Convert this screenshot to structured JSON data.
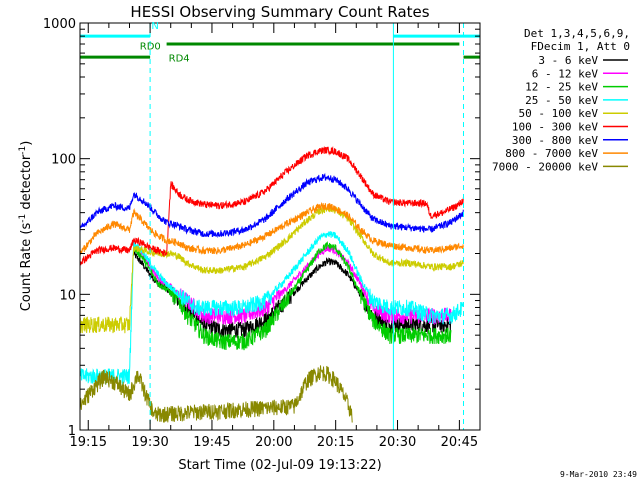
{
  "chart_data": {
    "type": "line",
    "title": "HESSI Observing Summary Count Rates",
    "xlabel": "Start Time (02-Jul-09 19:13:22)",
    "ylabel_main": "Count Rate (s",
    "ylabel_sup1": "-1",
    "ylabel_mid": " detector",
    "ylabel_sup2": "-1",
    "ylabel_end": ")",
    "yscale": "log",
    "ylim": [
      1,
      1000
    ],
    "xlim_minutes": [
      0,
      97
    ],
    "x_ticks": [
      {
        "label": "19:15",
        "min": 2
      },
      {
        "label": "19:30",
        "min": 17
      },
      {
        "label": "19:45",
        "min": 32
      },
      {
        "label": "20:00",
        "min": 47
      },
      {
        "label": "20:15",
        "min": 62
      },
      {
        "label": "20:30",
        "min": 77
      },
      {
        "label": "20:45",
        "min": 92
      }
    ],
    "y_ticks": [
      {
        "label": "1",
        "value": 1
      },
      {
        "label": "10",
        "value": 10
      },
      {
        "label": "100",
        "value": 100
      },
      {
        "label": "1000",
        "value": 1000
      }
    ],
    "legend": {
      "header1": "Det 1,3,4,5,6,9,",
      "header2": "FDecim 1, Att 0",
      "placement": "right"
    },
    "series": [
      {
        "name": "3 - 6 keV",
        "color": "#000000",
        "points": [
          [
            13,
            20
          ],
          [
            15,
            17
          ],
          [
            17,
            14
          ],
          [
            19,
            12
          ],
          [
            21,
            11
          ],
          [
            24,
            9
          ],
          [
            26,
            8
          ],
          [
            28,
            7
          ],
          [
            30,
            6
          ],
          [
            34,
            5.5
          ],
          [
            40,
            5.5
          ],
          [
            45,
            6.5
          ],
          [
            50,
            9
          ],
          [
            55,
            13
          ],
          [
            58,
            16
          ],
          [
            60,
            17.5
          ],
          [
            62,
            17
          ],
          [
            65,
            14
          ],
          [
            68,
            10
          ],
          [
            71,
            7
          ],
          [
            75,
            6
          ],
          [
            80,
            6
          ],
          [
            85,
            6
          ],
          [
            90,
            6
          ]
        ]
      },
      {
        "name": "6 - 12 keV",
        "color": "#ff00ff",
        "points": [
          [
            13,
            23
          ],
          [
            15,
            20
          ],
          [
            17,
            16
          ],
          [
            19,
            13
          ],
          [
            21,
            12
          ],
          [
            24,
            10
          ],
          [
            26,
            9
          ],
          [
            28,
            8
          ],
          [
            30,
            7
          ],
          [
            34,
            7
          ],
          [
            40,
            7
          ],
          [
            45,
            8
          ],
          [
            50,
            11
          ],
          [
            55,
            16
          ],
          [
            58,
            20
          ],
          [
            60,
            22
          ],
          [
            62,
            21
          ],
          [
            65,
            17
          ],
          [
            68,
            12
          ],
          [
            71,
            8
          ],
          [
            75,
            7
          ],
          [
            80,
            7
          ],
          [
            85,
            7
          ],
          [
            90,
            7
          ]
        ]
      },
      {
        "name": "12 - 25 keV",
        "color": "#00cc00",
        "points": [
          [
            13,
            22
          ],
          [
            15,
            19
          ],
          [
            17,
            15
          ],
          [
            19,
            12
          ],
          [
            21,
            11
          ],
          [
            24,
            9
          ],
          [
            26,
            7
          ],
          [
            28,
            6
          ],
          [
            30,
            5
          ],
          [
            34,
            4.5
          ],
          [
            40,
            4.5
          ],
          [
            45,
            5.5
          ],
          [
            50,
            9
          ],
          [
            55,
            15
          ],
          [
            58,
            21
          ],
          [
            60,
            23
          ],
          [
            62,
            22
          ],
          [
            65,
            16
          ],
          [
            68,
            10
          ],
          [
            71,
            6.5
          ],
          [
            75,
            5
          ],
          [
            80,
            5
          ],
          [
            85,
            5
          ],
          [
            90,
            5
          ]
        ]
      },
      {
        "name": "25 - 50 keV",
        "color": "#00ffff",
        "points": [
          [
            0,
            2.5
          ],
          [
            12,
            2.5
          ],
          [
            13,
            24
          ],
          [
            15,
            21
          ],
          [
            17,
            17
          ],
          [
            19,
            14
          ],
          [
            21,
            12
          ],
          [
            24,
            10
          ],
          [
            26,
            9
          ],
          [
            28,
            8
          ],
          [
            30,
            8
          ],
          [
            34,
            8
          ],
          [
            40,
            8
          ],
          [
            45,
            9
          ],
          [
            50,
            13
          ],
          [
            55,
            20
          ],
          [
            58,
            26
          ],
          [
            60,
            28
          ],
          [
            62,
            27
          ],
          [
            65,
            21
          ],
          [
            68,
            13
          ],
          [
            71,
            9
          ],
          [
            75,
            8
          ],
          [
            80,
            8
          ],
          [
            85,
            7
          ],
          [
            90,
            7
          ],
          [
            93,
            8
          ]
        ]
      },
      {
        "name": "50 - 100 keV",
        "color": "#cccc00",
        "points": [
          [
            0,
            6
          ],
          [
            12,
            6
          ],
          [
            13,
            22
          ],
          [
            16,
            21
          ],
          [
            19,
            20
          ],
          [
            22,
            20
          ],
          [
            24,
            19
          ],
          [
            26,
            17
          ],
          [
            30,
            15
          ],
          [
            34,
            15
          ],
          [
            40,
            16
          ],
          [
            45,
            19
          ],
          [
            50,
            25
          ],
          [
            55,
            35
          ],
          [
            58,
            41
          ],
          [
            60,
            43
          ],
          [
            62,
            42
          ],
          [
            65,
            36
          ],
          [
            68,
            27
          ],
          [
            71,
            20
          ],
          [
            75,
            17
          ],
          [
            80,
            17
          ],
          [
            85,
            16
          ],
          [
            90,
            16
          ],
          [
            93,
            17
          ]
        ]
      },
      {
        "name": "100 - 300 keV",
        "color": "#ff0000",
        "points": [
          [
            0,
            17
          ],
          [
            4,
            21
          ],
          [
            8,
            22
          ],
          [
            12,
            21
          ],
          [
            13,
            25
          ],
          [
            15,
            24
          ],
          [
            17,
            22
          ],
          [
            19,
            21
          ],
          [
            21,
            20
          ],
          [
            22,
            65
          ],
          [
            24,
            55
          ],
          [
            26,
            50
          ],
          [
            30,
            46
          ],
          [
            34,
            45
          ],
          [
            40,
            48
          ],
          [
            45,
            58
          ],
          [
            50,
            80
          ],
          [
            55,
            105
          ],
          [
            58,
            114
          ],
          [
            60,
            116
          ],
          [
            62,
            113
          ],
          [
            65,
            100
          ],
          [
            68,
            75
          ],
          [
            71,
            55
          ],
          [
            75,
            48
          ],
          [
            80,
            47
          ],
          [
            84,
            47
          ],
          [
            85,
            38
          ],
          [
            88,
            40
          ],
          [
            92,
            46
          ],
          [
            93,
            50
          ]
        ]
      },
      {
        "name": "300 - 800 keV",
        "color": "#0000ff",
        "points": [
          [
            0,
            30
          ],
          [
            4,
            40
          ],
          [
            8,
            45
          ],
          [
            12,
            43
          ],
          [
            13,
            55
          ],
          [
            15,
            50
          ],
          [
            17,
            44
          ],
          [
            19,
            38
          ],
          [
            21,
            34
          ],
          [
            24,
            32
          ],
          [
            26,
            30
          ],
          [
            30,
            28
          ],
          [
            34,
            28
          ],
          [
            40,
            30
          ],
          [
            45,
            36
          ],
          [
            50,
            50
          ],
          [
            55,
            66
          ],
          [
            58,
            72
          ],
          [
            60,
            73
          ],
          [
            62,
            70
          ],
          [
            65,
            60
          ],
          [
            68,
            46
          ],
          [
            71,
            36
          ],
          [
            75,
            32
          ],
          [
            80,
            31
          ],
          [
            85,
            30
          ],
          [
            90,
            34
          ],
          [
            93,
            40
          ]
        ]
      },
      {
        "name": "800 - 7000 keV",
        "color": "#ff8800",
        "points": [
          [
            0,
            20
          ],
          [
            4,
            28
          ],
          [
            8,
            33
          ],
          [
            12,
            30
          ],
          [
            13,
            40
          ],
          [
            15,
            35
          ],
          [
            17,
            30
          ],
          [
            19,
            27
          ],
          [
            21,
            25
          ],
          [
            24,
            24
          ],
          [
            26,
            22
          ],
          [
            30,
            21
          ],
          [
            34,
            21
          ],
          [
            40,
            23
          ],
          [
            45,
            27
          ],
          [
            50,
            33
          ],
          [
            55,
            40
          ],
          [
            58,
            44
          ],
          [
            60,
            45
          ],
          [
            62,
            43
          ],
          [
            65,
            38
          ],
          [
            68,
            30
          ],
          [
            71,
            25
          ],
          [
            75,
            23
          ],
          [
            80,
            22
          ],
          [
            85,
            21
          ],
          [
            90,
            22
          ],
          [
            93,
            23
          ]
        ]
      },
      {
        "name": "7000 - 20000 keV",
        "color": "#888800",
        "points": [
          [
            0,
            1.5
          ],
          [
            3,
            2
          ],
          [
            6,
            2.5
          ],
          [
            9,
            2.2
          ],
          [
            12,
            1.8
          ],
          [
            14,
            2.6
          ],
          [
            16,
            1.8
          ],
          [
            18,
            1.3
          ],
          [
            52,
            1.5
          ],
          [
            55,
            2.3
          ],
          [
            58,
            2.7
          ],
          [
            60,
            2.6
          ],
          [
            62,
            2.3
          ],
          [
            64,
            1.8
          ],
          [
            66,
            1.3
          ]
        ]
      }
    ],
    "annotations": [
      {
        "text": "N",
        "color": "#00ffff"
      },
      {
        "text": "RD0",
        "color": "#008800"
      },
      {
        "text": "RD4",
        "color": "#008800"
      }
    ],
    "flag_bars": [
      {
        "color": "#00ffff",
        "y": 800,
        "segments": [
          [
            0,
            17
          ],
          [
            76,
            97
          ]
        ]
      },
      {
        "color": "#008800",
        "y": 700,
        "segments": [
          [
            21,
            92
          ]
        ]
      },
      {
        "color": "#008800",
        "y": 560,
        "segments": [
          [
            0,
            17
          ],
          [
            93,
            97
          ]
        ]
      }
    ],
    "verticals": [
      {
        "min": 17,
        "color": "#00ffff",
        "style": "dashed"
      },
      {
        "min": 76,
        "color": "#00ffff",
        "style": "solid"
      },
      {
        "min": 93,
        "color": "#00ffff",
        "style": "dashed"
      }
    ]
  },
  "footer": {
    "timestamp": "9-Mar-2010 23:49"
  }
}
